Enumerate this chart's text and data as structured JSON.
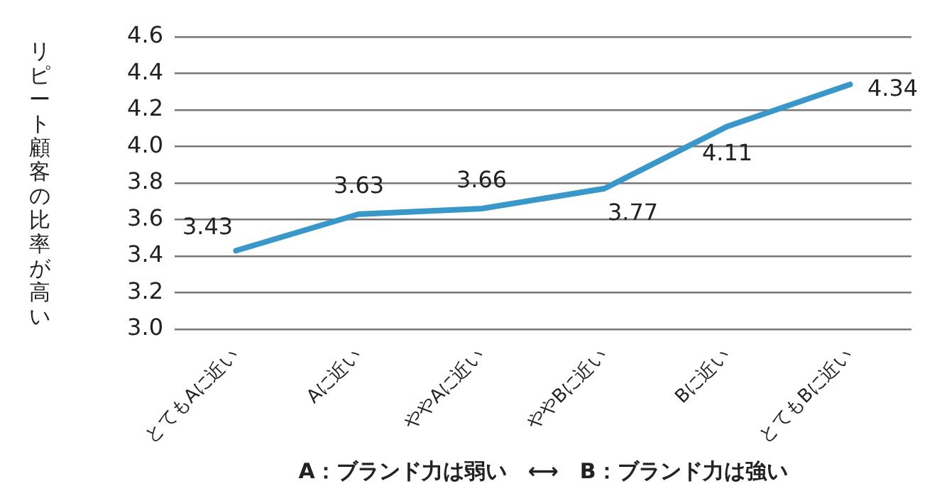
{
  "chart_data": {
    "type": "line",
    "ylabel": "リピート顧客の比率が高い",
    "xlabel": "A：ブランド力は弱い　⟷　B：ブランド力は強い",
    "categories": [
      "とてもAに近い",
      "Aに近い",
      "ややAに近い",
      "ややBに近い",
      "Bに近い",
      "とてもBに近い"
    ],
    "series": [
      {
        "color": "#3a97c9",
        "values": [
          3.43,
          3.63,
          3.66,
          3.77,
          4.11,
          4.34
        ]
      }
    ],
    "ylim": [
      3.0,
      4.6
    ],
    "yticks": [
      {
        "value": 3.0,
        "label": "3.0"
      },
      {
        "value": 3.2,
        "label": "3.2"
      },
      {
        "value": 3.4,
        "label": "3.4"
      },
      {
        "value": 3.6,
        "label": "3.6"
      },
      {
        "value": 3.8,
        "label": "3.8"
      },
      {
        "value": 4.0,
        "label": "4.0"
      },
      {
        "value": 4.2,
        "label": "4.2"
      },
      {
        "value": 4.4,
        "label": "4.4"
      },
      {
        "value": 4.6,
        "label": "4.6"
      }
    ],
    "grid": "y",
    "legend": false,
    "marker": "none",
    "line_style": "solid",
    "data_labels": true
  }
}
